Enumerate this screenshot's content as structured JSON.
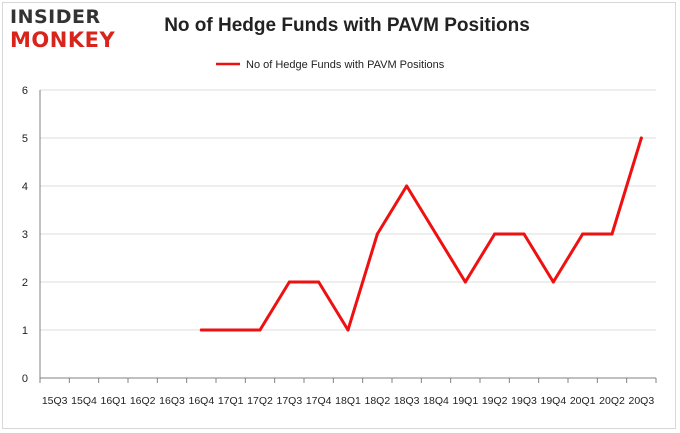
{
  "header": {
    "logo_line1": "INSIDER",
    "logo_line2": "MONKEY",
    "title": "No of Hedge Funds with PAVM Positions"
  },
  "colors": {
    "series": "#ee1111",
    "grid": "#dcdcdc",
    "axis": "#808080",
    "text": "#222222",
    "logo_dark": "#333333",
    "logo_red": "#d9241c"
  },
  "chart_data": {
    "type": "line",
    "title": "No of Hedge Funds with PAVM Positions",
    "xlabel": "",
    "ylabel": "",
    "ylim": [
      0,
      6
    ],
    "yticks": [
      0,
      1,
      2,
      3,
      4,
      5,
      6
    ],
    "grid": true,
    "legend_position": "top",
    "categories": [
      "15Q3",
      "15Q4",
      "16Q1",
      "16Q2",
      "16Q3",
      "16Q4",
      "17Q1",
      "17Q2",
      "17Q3",
      "17Q4",
      "18Q1",
      "18Q2",
      "18Q3",
      "18Q4",
      "19Q1",
      "19Q2",
      "19Q3",
      "19Q4",
      "20Q1",
      "20Q2",
      "20Q3"
    ],
    "series": [
      {
        "name": "No of Hedge Funds with PAVM Positions",
        "values": [
          null,
          null,
          null,
          null,
          null,
          1,
          1,
          1,
          2,
          2,
          1,
          3,
          4,
          3,
          2,
          3,
          3,
          2,
          3,
          3,
          5
        ]
      }
    ]
  }
}
